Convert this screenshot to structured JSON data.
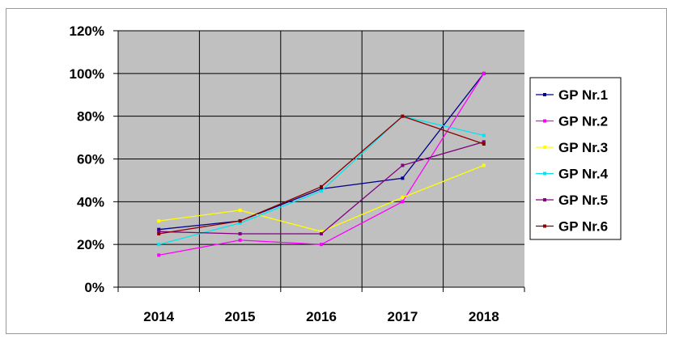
{
  "chart_data": {
    "type": "line",
    "title": "",
    "xlabel": "",
    "ylabel": "",
    "categories": [
      "2014",
      "2015",
      "2016",
      "2017",
      "2018"
    ],
    "y_ticks": [
      "0%",
      "20%",
      "40%",
      "60%",
      "80%",
      "100%",
      "120%"
    ],
    "ylim": [
      0,
      120
    ],
    "grid": true,
    "plot_background": "#c0c0c0",
    "legend_position": "right",
    "series": [
      {
        "name": "GP Nr.1",
        "color": "#00008b",
        "values": [
          27,
          31,
          46,
          51,
          100
        ]
      },
      {
        "name": "GP Nr.2",
        "color": "#ff00ff",
        "values": [
          15,
          22,
          20,
          40,
          100
        ]
      },
      {
        "name": "GP Nr.3",
        "color": "#ffff00",
        "values": [
          31,
          36,
          26,
          42,
          57
        ]
      },
      {
        "name": "GP Nr.4",
        "color": "#00e5ee",
        "values": [
          20,
          30,
          45,
          80,
          71
        ]
      },
      {
        "name": "GP Nr.5",
        "color": "#800080",
        "values": [
          26,
          25,
          25,
          57,
          68
        ]
      },
      {
        "name": "GP Nr.6",
        "color": "#8b0000",
        "values": [
          25,
          31,
          47,
          80,
          67
        ]
      }
    ]
  }
}
